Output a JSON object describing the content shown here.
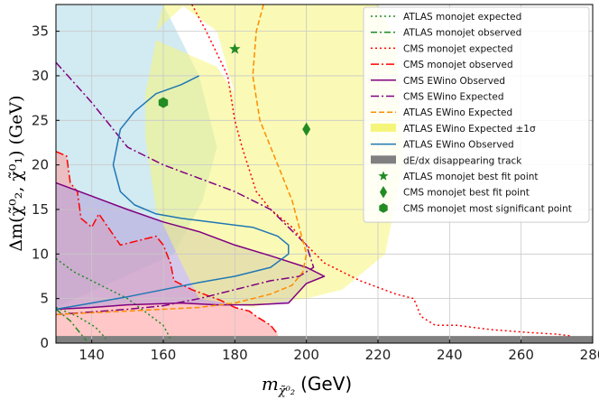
{
  "chart_data": {
    "type": "line",
    "title": "",
    "xlabel": "m_{χ̃⁰₂} (GeV)",
    "xlabel_main": "m",
    "xlabel_sub": "χ̃⁰₂",
    "xlabel_unit": "(GeV)",
    "ylabel": "Δm(χ̃⁰₂, χ̃⁰₁) (GeV)",
    "xlim": [
      130,
      280
    ],
    "ylim": [
      0,
      38
    ],
    "xticks": [
      140,
      160,
      180,
      200,
      220,
      240,
      260,
      280
    ],
    "yticks": [
      0,
      5,
      10,
      15,
      20,
      25,
      30,
      35
    ],
    "grid": true,
    "legend_position": "top-right",
    "regions": [
      {
        "name": "ATLAS monojet excluded (blue)",
        "color": "#add8e6",
        "x": [
          130,
          160,
          170,
          175,
          171,
          163,
          130
        ],
        "y": [
          38,
          38,
          30,
          22,
          16,
          10,
          4
        ]
      },
      {
        "name": "CMS monojet excluded (red)",
        "color": "#ff9999",
        "x": [
          130,
          133,
          134,
          136,
          137,
          140,
          142,
          148,
          158,
          160,
          162,
          163,
          168,
          176,
          180,
          184,
          186,
          188,
          190,
          191,
          192,
          192,
          130
        ],
        "y": [
          21.5,
          21,
          18,
          17,
          14,
          13,
          14.5,
          11,
          12,
          11,
          9,
          7,
          6,
          4.8,
          4,
          3.6,
          3,
          2.5,
          2,
          1.5,
          1,
          0.7,
          0.7
        ]
      },
      {
        "name": "CMS EWino observed region (purple)",
        "color": "#b39ddb",
        "x": [
          130,
          140,
          150,
          160,
          170,
          180,
          190,
          200,
          205,
          200,
          195,
          185,
          175,
          165,
          150,
          140,
          130
        ],
        "y": [
          18,
          16.5,
          15,
          13.6,
          12.5,
          11,
          9.8,
          8.5,
          7.5,
          6.7,
          4.5,
          4.3,
          4.3,
          4.5,
          4.3,
          4.0,
          3.8
        ]
      },
      {
        "name": "ATLAS EWino Expected ±1σ band",
        "color": "#f5f57a",
        "x": [
          158,
          166,
          180,
          182,
          200,
          220,
          225,
          227,
          222,
          210,
          200,
          190,
          185,
          170,
          165,
          158,
          155,
          155,
          158,
          175,
          180,
          175,
          165,
          160,
          158
        ],
        "y": [
          35,
          38,
          38,
          38,
          38,
          38,
          34,
          20,
          10,
          6,
          5,
          4.5,
          4,
          5,
          9,
          15,
          23,
          28,
          34,
          31,
          28,
          35,
          38,
          38,
          35
        ]
      }
    ],
    "series": [
      {
        "name": "ATLAS monojet expected",
        "color": "#228B22",
        "dash": "2,3",
        "x": [
          130,
          135,
          140,
          145,
          150,
          155,
          160,
          162
        ],
        "y": [
          9.5,
          8,
          7,
          6,
          5,
          3.5,
          2,
          0.5
        ]
      },
      {
        "name": "ATLAS monojet expected (lower)",
        "color": "#228B22",
        "dash": "2,3",
        "x": [
          130,
          136,
          141,
          144
        ],
        "y": [
          4,
          3,
          1.8,
          0.5
        ]
      },
      {
        "name": "ATLAS monojet observed",
        "color": "#228B22",
        "dash": "7,3,2,3",
        "x": [
          130,
          134,
          137,
          138.5
        ],
        "y": [
          3.8,
          2.5,
          1,
          0.3
        ]
      },
      {
        "name": "CMS monojet expected",
        "color": "#ff0000",
        "dash": "2,3",
        "x": [
          168,
          172,
          178,
          180,
          182,
          186,
          190,
          196,
          200,
          205,
          215,
          225,
          230,
          232,
          236,
          242,
          252,
          262,
          270,
          274
        ],
        "y": [
          38,
          35,
          30,
          25,
          22,
          17,
          15,
          13,
          11,
          9,
          7,
          5.5,
          5,
          3,
          2,
          2,
          1.5,
          1.2,
          1,
          0.8
        ]
      },
      {
        "name": "CMS monojet observed",
        "color": "#ff0000",
        "dash": "9,3,2,3",
        "x": [
          130,
          133,
          134,
          136,
          137,
          140,
          142,
          148,
          158,
          160,
          162,
          163,
          168,
          176,
          180,
          184,
          186,
          188,
          190,
          192
        ],
        "y": [
          21.5,
          21,
          18,
          17,
          14,
          13,
          14.5,
          11,
          12,
          11,
          9,
          7,
          6,
          4.8,
          4,
          3.6,
          3,
          2.5,
          2,
          1
        ]
      },
      {
        "name": "CMS EWino Observed",
        "color": "#800080",
        "dash": "",
        "x": [
          130,
          140,
          150,
          160,
          170,
          180,
          190,
          200,
          205,
          200,
          195,
          185,
          175,
          165,
          150,
          140,
          130
        ],
        "y": [
          18,
          16.5,
          15,
          13.6,
          12.5,
          11,
          9.8,
          8.5,
          7.5,
          6.7,
          4.5,
          4.3,
          4.3,
          4.5,
          4.3,
          4.0,
          3.8
        ]
      },
      {
        "name": "CMS EWino Expected",
        "color": "#800080",
        "dash": "9,3,2,3",
        "x": [
          130,
          140,
          150,
          160,
          170,
          180,
          190,
          195,
          200,
          202,
          198,
          190,
          180,
          170,
          160,
          150,
          140,
          130
        ],
        "y": [
          31.5,
          27,
          22,
          20,
          18.5,
          17,
          15,
          13,
          11,
          8.5,
          7.5,
          7,
          6,
          5,
          4.2,
          3.8,
          3.5,
          3.2
        ]
      },
      {
        "name": "ATLAS EWino Expected",
        "color": "#ff8c00",
        "dash": "6,3",
        "x": [
          188,
          186,
          185,
          187,
          190,
          193,
          196,
          198,
          200,
          199,
          196,
          190,
          180,
          170,
          160,
          150,
          140,
          130
        ],
        "y": [
          38,
          35,
          30,
          25,
          22,
          19,
          16,
          13,
          10,
          8,
          6.5,
          5.5,
          4.5,
          4,
          3.8,
          3.6,
          3.4,
          3.2
        ]
      },
      {
        "name": "ATLAS EWino Observed",
        "color": "#1f77b4",
        "dash": "",
        "x": [
          170,
          165,
          158,
          152,
          148,
          146,
          148,
          152,
          158,
          165,
          175,
          185,
          192,
          195,
          195,
          190,
          180,
          170,
          160,
          150,
          140,
          130
        ],
        "y": [
          30,
          29,
          28,
          26,
          24,
          20,
          17,
          15.5,
          14.5,
          14,
          13.5,
          13,
          12,
          11,
          10,
          8.5,
          7.5,
          6.8,
          6,
          5.2,
          4.5,
          3.8
        ]
      }
    ],
    "disappearing_track": {
      "name": "dE/dx disappearing track",
      "color": "#808080",
      "y_range": [
        0,
        0.8
      ]
    },
    "points": [
      {
        "name": "ATLAS monojet best fit point",
        "marker": "star",
        "color": "#228B22",
        "x": 180,
        "y": 33
      },
      {
        "name": "CMS monojet best fit point",
        "marker": "diamond",
        "color": "#228B22",
        "x": 200,
        "y": 24
      },
      {
        "name": "CMS monojet most significant point",
        "marker": "hexagon",
        "color": "#228B22",
        "x": 160,
        "y": 27
      }
    ],
    "legend": [
      {
        "label": "ATLAS monojet expected",
        "kind": "line",
        "color": "#228B22",
        "dash": "2,3"
      },
      {
        "label": "ATLAS monojet observed",
        "kind": "line",
        "color": "#228B22",
        "dash": "7,3,2,3"
      },
      {
        "label": "CMS monojet expected",
        "kind": "line",
        "color": "#ff0000",
        "dash": "2,3"
      },
      {
        "label": "CMS monojet observed",
        "kind": "line",
        "color": "#ff0000",
        "dash": "9,3,2,3"
      },
      {
        "label": "CMS EWino Observed",
        "kind": "line",
        "color": "#800080",
        "dash": ""
      },
      {
        "label": "CMS EWino Expected",
        "kind": "line",
        "color": "#800080",
        "dash": "9,3,2,3"
      },
      {
        "label": "ATLAS EWino Expected",
        "kind": "line",
        "color": "#ff8c00",
        "dash": "6,3"
      },
      {
        "label": "ATLAS EWino Expected ±1σ",
        "kind": "patch",
        "color": "#f5f57a"
      },
      {
        "label": "ATLAS EWino Observed",
        "kind": "line",
        "color": "#1f77b4",
        "dash": ""
      },
      {
        "label": "dE/dx disappearing track",
        "kind": "patch",
        "color": "#808080"
      },
      {
        "label": "ATLAS monojet best fit point",
        "kind": "star",
        "color": "#228B22"
      },
      {
        "label": "CMS monojet best fit point",
        "kind": "diamond",
        "color": "#228B22"
      },
      {
        "label": "CMS monojet most significant point",
        "kind": "hexagon",
        "color": "#228B22"
      }
    ]
  }
}
